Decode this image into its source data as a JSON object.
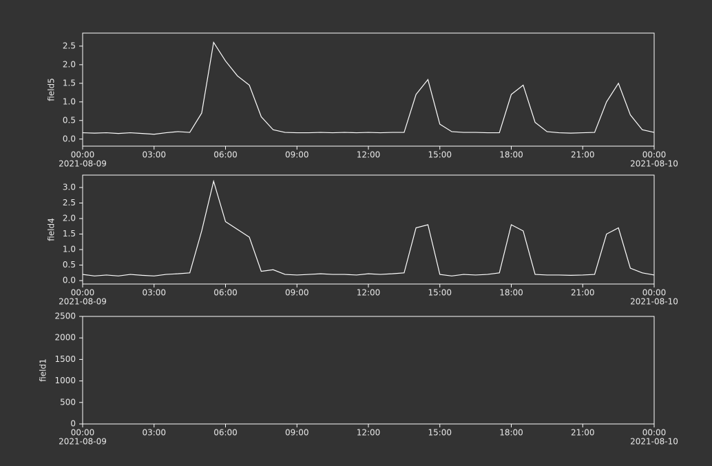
{
  "chart_data": [
    {
      "type": "line",
      "ylabel": "field5",
      "x": [
        0,
        0.5,
        1,
        1.5,
        2,
        2.5,
        3,
        3.5,
        4,
        4.5,
        5,
        5.5,
        6,
        6.5,
        7,
        7.5,
        8,
        8.5,
        9,
        9.5,
        10,
        10.5,
        11,
        11.5,
        12,
        12.5,
        13,
        13.5,
        14,
        14.5,
        15,
        15.5,
        16,
        16.5,
        17,
        17.5,
        18,
        18.5,
        19,
        19.5,
        20,
        20.5,
        21,
        21.5,
        22,
        22.5,
        23,
        23.5,
        24
      ],
      "series": [
        {
          "name": "field5",
          "color": "#ffffff",
          "values": [
            0.17,
            0.16,
            0.17,
            0.15,
            0.17,
            0.15,
            0.13,
            0.17,
            0.2,
            0.18,
            0.7,
            2.6,
            2.1,
            1.7,
            1.45,
            0.6,
            0.25,
            0.18,
            0.17,
            0.17,
            0.18,
            0.17,
            0.18,
            0.17,
            0.18,
            0.17,
            0.18,
            0.18,
            1.2,
            1.6,
            0.4,
            0.2,
            0.18,
            0.18,
            0.17,
            0.17,
            1.2,
            1.45,
            0.45,
            0.2,
            0.17,
            0.16,
            0.17,
            0.18,
            1.0,
            1.5,
            0.65,
            0.25,
            0.18
          ]
        }
      ],
      "xlim": [
        0,
        24
      ],
      "xticks": [
        {
          "value": 0,
          "label": "00:00"
        },
        {
          "value": 3,
          "label": "03:00"
        },
        {
          "value": 6,
          "label": "06:00"
        },
        {
          "value": 9,
          "label": "09:00"
        },
        {
          "value": 12,
          "label": "12:00"
        },
        {
          "value": 15,
          "label": "15:00"
        },
        {
          "value": 18,
          "label": "18:00"
        },
        {
          "value": 21,
          "label": "21:00"
        },
        {
          "value": 24,
          "label": "00:00"
        }
      ],
      "x_date_labels": [
        {
          "value": 0,
          "label": "2021-08-09"
        },
        {
          "value": 24,
          "label": "2021-08-10"
        }
      ],
      "ylim": [
        -0.19,
        2.85
      ],
      "yticks": [
        {
          "value": 0,
          "label": "0.0"
        },
        {
          "value": 0.5,
          "label": "0.5"
        },
        {
          "value": 1,
          "label": "1.0"
        },
        {
          "value": 1.5,
          "label": "1.5"
        },
        {
          "value": 2,
          "label": "2.0"
        },
        {
          "value": 2.5,
          "label": "2.5"
        }
      ]
    },
    {
      "type": "line",
      "ylabel": "field4",
      "x": [
        0,
        0.5,
        1,
        1.5,
        2,
        2.5,
        3,
        3.5,
        4,
        4.5,
        5,
        5.5,
        6,
        6.5,
        7,
        7.5,
        8,
        8.5,
        9,
        9.5,
        10,
        10.5,
        11,
        11.5,
        12,
        12.5,
        13,
        13.5,
        14,
        14.5,
        15,
        15.5,
        16,
        16.5,
        17,
        17.5,
        18,
        18.5,
        19,
        19.5,
        20,
        20.5,
        21,
        21.5,
        22,
        22.5,
        23,
        23.5,
        24
      ],
      "series": [
        {
          "name": "field4",
          "color": "#ffffff",
          "values": [
            0.2,
            0.15,
            0.18,
            0.15,
            0.2,
            0.17,
            0.15,
            0.2,
            0.22,
            0.25,
            1.6,
            3.2,
            1.9,
            1.65,
            1.4,
            0.3,
            0.35,
            0.2,
            0.18,
            0.2,
            0.22,
            0.2,
            0.2,
            0.18,
            0.22,
            0.2,
            0.22,
            0.25,
            1.7,
            1.8,
            0.2,
            0.15,
            0.2,
            0.18,
            0.2,
            0.25,
            1.8,
            1.6,
            0.2,
            0.18,
            0.18,
            0.17,
            0.18,
            0.2,
            1.5,
            1.7,
            0.4,
            0.25,
            0.18
          ]
        }
      ],
      "xlim": [
        0,
        24
      ],
      "xticks": [
        {
          "value": 0,
          "label": "00:00"
        },
        {
          "value": 3,
          "label": "03:00"
        },
        {
          "value": 6,
          "label": "06:00"
        },
        {
          "value": 9,
          "label": "09:00"
        },
        {
          "value": 12,
          "label": "12:00"
        },
        {
          "value": 15,
          "label": "15:00"
        },
        {
          "value": 18,
          "label": "18:00"
        },
        {
          "value": 21,
          "label": "21:00"
        },
        {
          "value": 24,
          "label": "00:00"
        }
      ],
      "x_date_labels": [
        {
          "value": 0,
          "label": "2021-08-09"
        },
        {
          "value": 24,
          "label": "2021-08-10"
        }
      ],
      "ylim": [
        -0.11,
        3.4
      ],
      "yticks": [
        {
          "value": 0,
          "label": "0.0"
        },
        {
          "value": 0.5,
          "label": "0.5"
        },
        {
          "value": 1,
          "label": "1.0"
        },
        {
          "value": 1.5,
          "label": "1.5"
        },
        {
          "value": 2,
          "label": "2.0"
        },
        {
          "value": 2.5,
          "label": "2.5"
        },
        {
          "value": 3,
          "label": "3.0"
        }
      ]
    },
    {
      "type": "line",
      "ylabel": "field1",
      "xlim": [
        0,
        24
      ],
      "xticks": [
        {
          "value": 0,
          "label": "00:00"
        },
        {
          "value": 3,
          "label": "03:00"
        },
        {
          "value": 6,
          "label": "06:00"
        },
        {
          "value": 9,
          "label": "09:00"
        },
        {
          "value": 12,
          "label": "12:00"
        },
        {
          "value": 15,
          "label": "15:00"
        },
        {
          "value": 18,
          "label": "18:00"
        },
        {
          "value": 21,
          "label": "21:00"
        },
        {
          "value": 24,
          "label": "00:00"
        }
      ],
      "x_date_labels": [
        {
          "value": 0,
          "label": "2021-08-09"
        },
        {
          "value": 24,
          "label": "2021-08-10"
        }
      ],
      "ylim": [
        0,
        2500
      ],
      "yticks": [
        0,
        500,
        1000,
        1500,
        2000,
        2500
      ]
    }
  ]
}
